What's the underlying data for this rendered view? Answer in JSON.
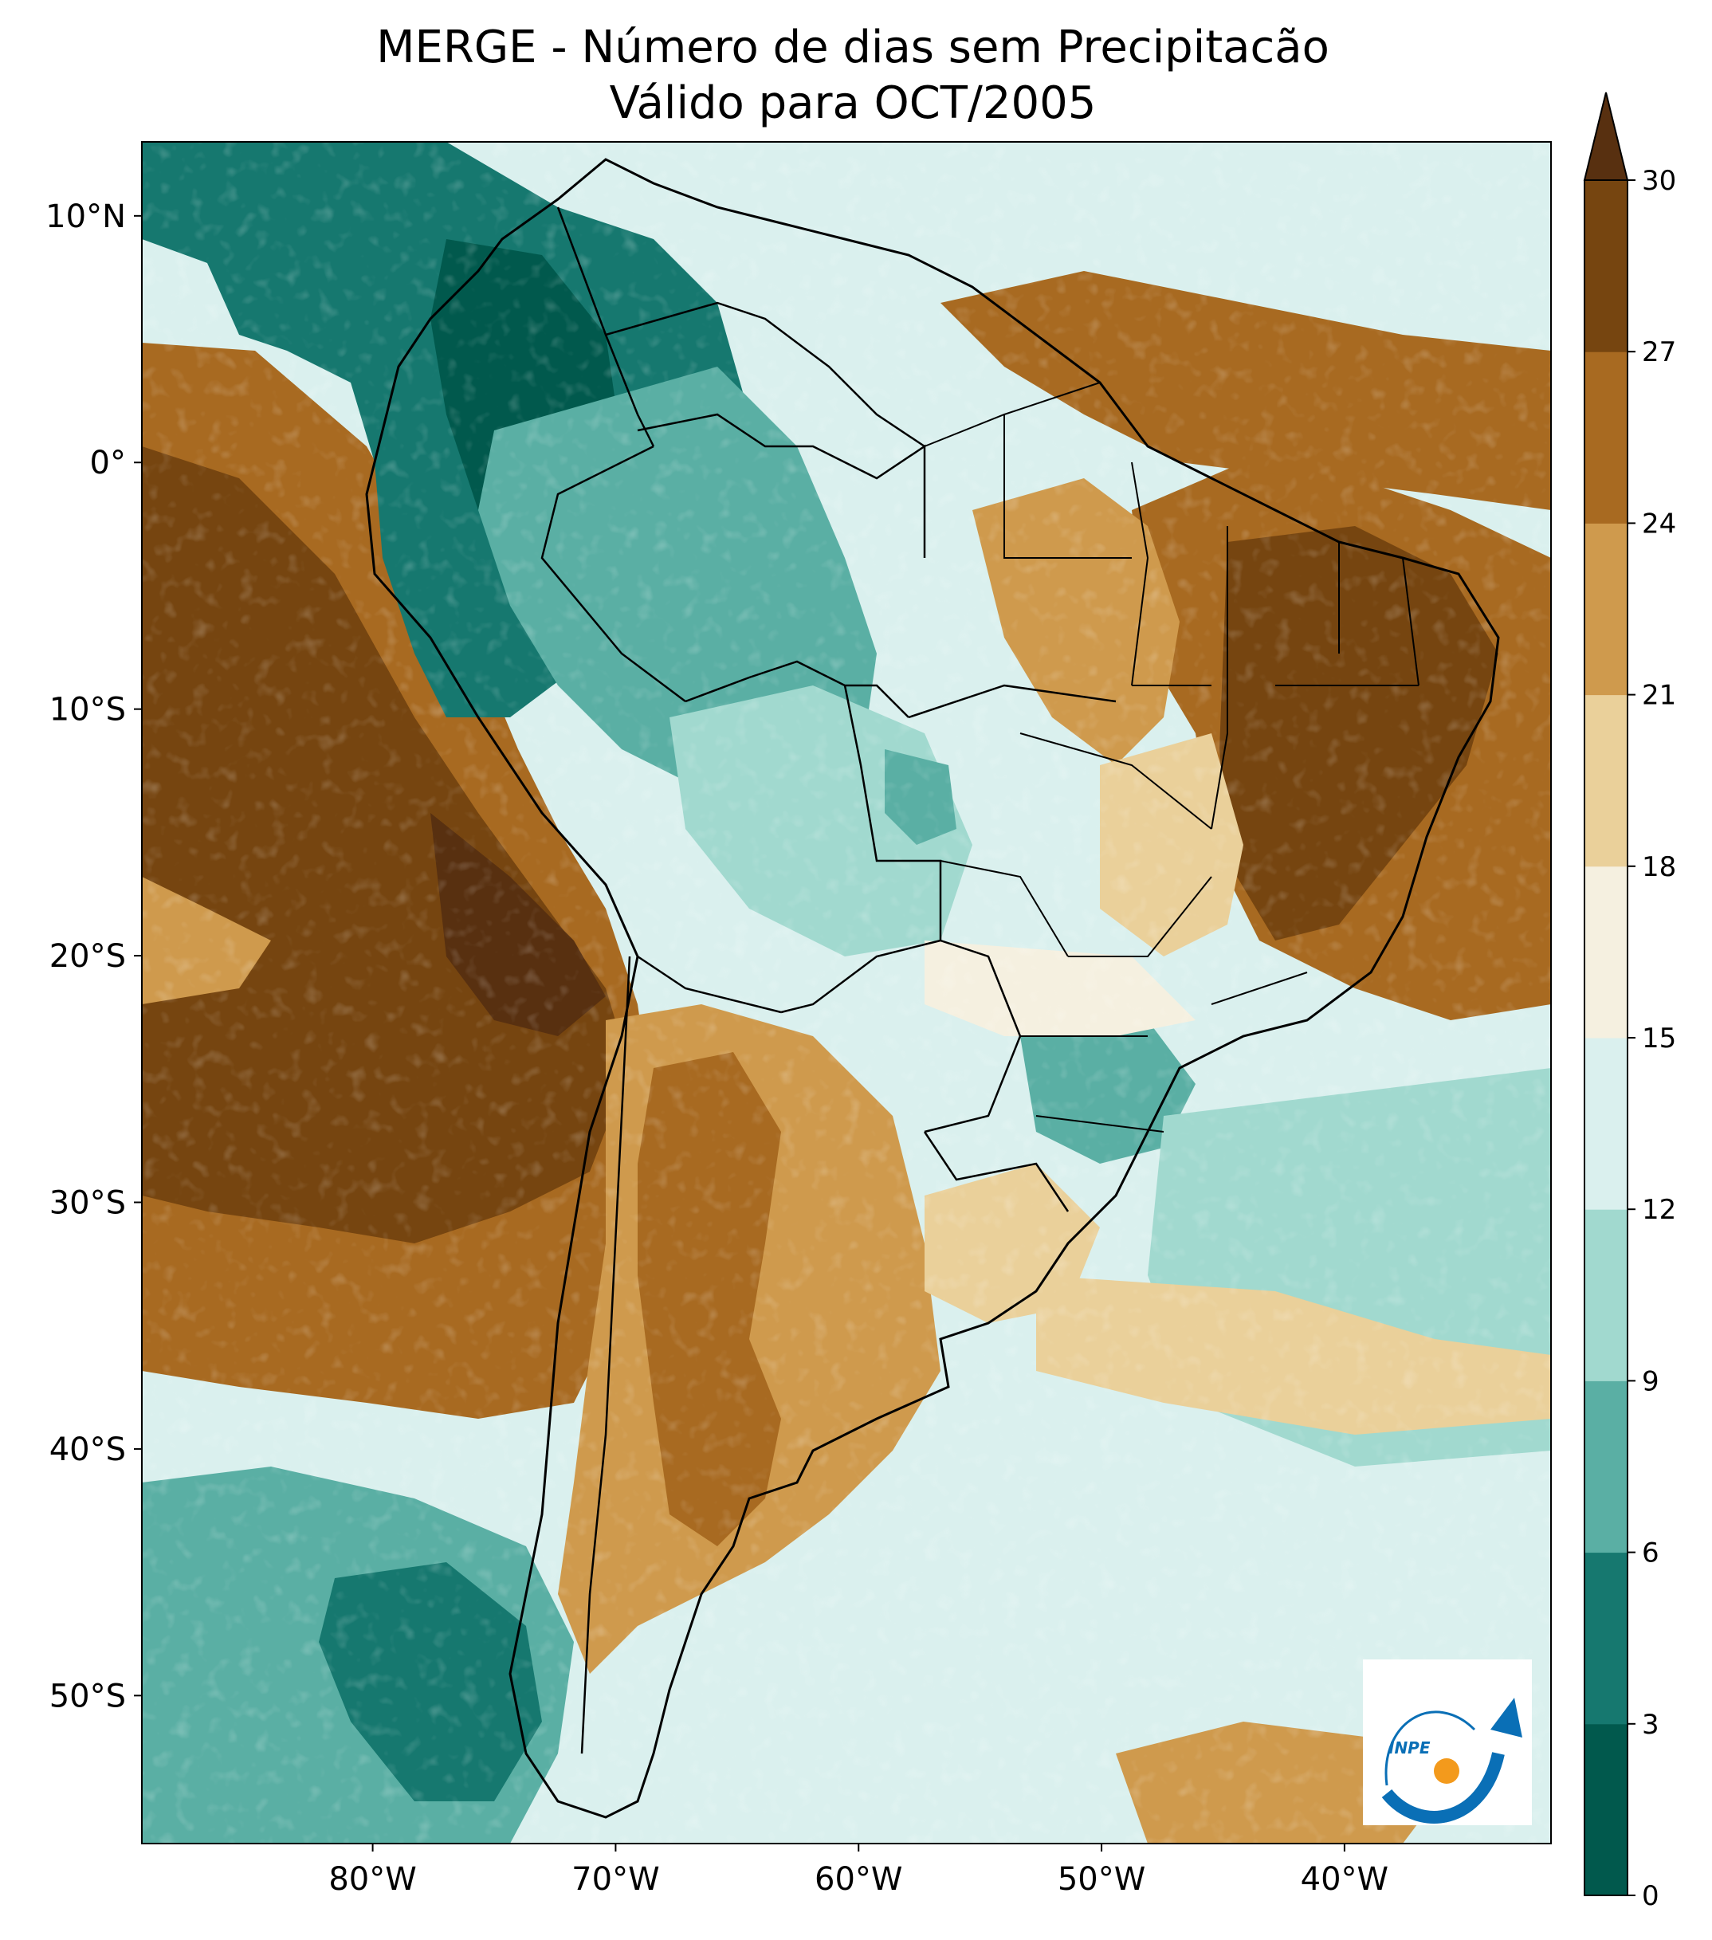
{
  "title": {
    "line1": "MERGE - Número de dias sem Precipitacão",
    "line2": "Válido para OCT/2005"
  },
  "map": {
    "lat_labels": [
      "10°N",
      "0°",
      "10°S",
      "20°S",
      "30°S",
      "40°S",
      "50°S"
    ],
    "lat_values": [
      10,
      0,
      -10,
      -20,
      -30,
      -40,
      -50
    ],
    "lon_labels": [
      "80°W",
      "70°W",
      "60°W",
      "50°W",
      "40°W"
    ],
    "lon_values": [
      -80,
      -70,
      -60,
      -50,
      -40
    ],
    "lat_range": [
      -56,
      13
    ],
    "lon_range": [
      -89.5,
      -31.5
    ]
  },
  "colorbar": {
    "ticks": [
      "0",
      "3",
      "6",
      "9",
      "12",
      "15",
      "18",
      "21",
      "24",
      "27",
      "30"
    ],
    "colors": [
      "#01594d",
      "#16786f",
      "#5aafa4",
      "#a1d9cf",
      "#daf0ee",
      "#f5f0e0",
      "#ead09a",
      "#cf9a4d",
      "#a86a21",
      "#764510"
    ],
    "extend_color": "#583010"
  },
  "logo": {
    "text": "INPE",
    "blue": "#0a6fb6",
    "orange": "#f39a1c"
  }
}
